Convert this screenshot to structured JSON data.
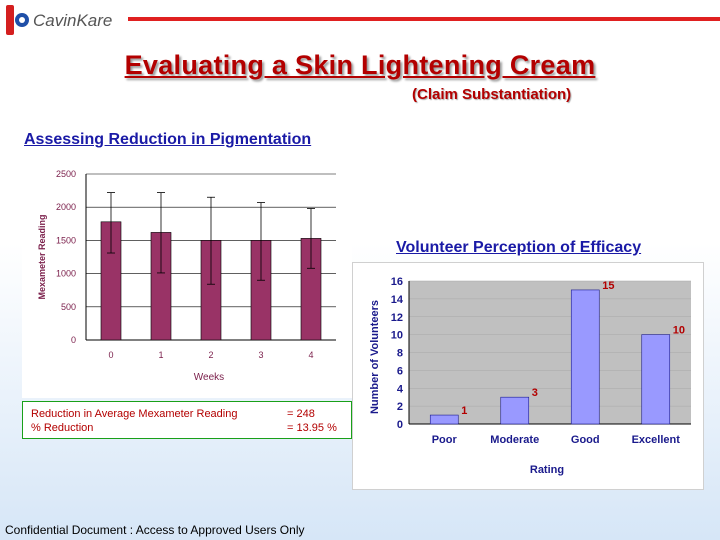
{
  "header": {
    "logo_text": "CavinKare",
    "title": "Evaluating a Skin Lightening Cream",
    "subtitle": "(Claim Substantiation)"
  },
  "section1": {
    "heading": "Assessing Reduction in Pigmentation"
  },
  "section2": {
    "heading": "Volunteer Perception of Efficacy"
  },
  "summary": {
    "row1_label": "Reduction in Average Mexameter Reading",
    "row1_value": "= 248",
    "row2_label": "% Reduction",
    "row2_value": "= 13.95 %"
  },
  "footer": {
    "text": "Confidential Document : Access to Approved Users Only"
  },
  "colors": {
    "brand_red": "#e02020",
    "title_red": "#b30000",
    "heading_blue": "#1a1aa6",
    "bar1": "#993366",
    "bar2": "#9999ff"
  },
  "chart_data": [
    {
      "type": "bar",
      "title": "",
      "xlabel": "Weeks",
      "ylabel": "Mexameter Reading",
      "categories": [
        "0",
        "1",
        "2",
        "3",
        "4"
      ],
      "values": [
        1780,
        1620,
        1500,
        1500,
        1530
      ],
      "error_high": [
        2220,
        2220,
        2150,
        2070,
        1980
      ],
      "error_low": [
        1310,
        1010,
        840,
        900,
        1080
      ],
      "yticks": [
        "0",
        "500",
        "1000",
        "1500",
        "2000",
        "2500"
      ],
      "ylim": [
        0,
        2500
      ],
      "grid": true,
      "color": "#993366"
    },
    {
      "type": "bar",
      "title": "",
      "xlabel": "Rating",
      "ylabel": "Number of Volunteers",
      "categories": [
        "Poor",
        "Moderate",
        "Good",
        "Excellent"
      ],
      "values": [
        1,
        3,
        15,
        10
      ],
      "yticks": [
        "0",
        "2",
        "4",
        "6",
        "8",
        "10",
        "12",
        "14",
        "16"
      ],
      "ylim": [
        0,
        16
      ],
      "grid": true,
      "plot_background": "#c0c0c0",
      "color": "#9999ff"
    }
  ]
}
